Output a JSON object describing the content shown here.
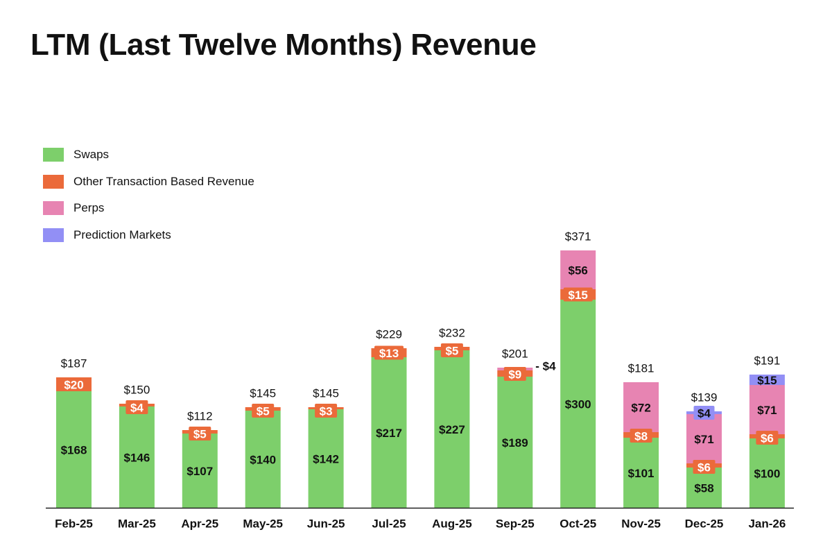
{
  "page": {
    "title": "LTM (Last Twelve Months) Revenue"
  },
  "chart_data": {
    "type": "stacked-bar",
    "title": "LTM (Last Twelve Months) Revenue",
    "xlabel": "",
    "ylabel": "",
    "ylim": [
      0,
      380
    ],
    "grid": false,
    "legend_position": "top-left",
    "categories": [
      "Feb-25",
      "Mar-25",
      "Apr-25",
      "May-25",
      "Jun-25",
      "Jul-25",
      "Aug-25",
      "Sep-25",
      "Oct-25",
      "Nov-25",
      "Dec-25",
      "Jan-26"
    ],
    "series": [
      {
        "name": "Swaps",
        "color": "#7dcf6b",
        "values": [
          168,
          146,
          107,
          140,
          142,
          217,
          227,
          189,
          300,
          101,
          58,
          100
        ],
        "labels": [
          "$168",
          "$146",
          "$107",
          "$140",
          "$142",
          "$217",
          "$227",
          "$189",
          "$300",
          "$101",
          "$58",
          "$100"
        ]
      },
      {
        "name": "Other Transaction Based Revenue",
        "color": "#eb6a3a",
        "values": [
          20,
          4,
          5,
          5,
          3,
          13,
          5,
          9,
          15,
          8,
          6,
          6
        ],
        "labels": [
          "$20",
          "$4",
          "$5",
          "$5",
          "$3",
          "$13",
          "$5",
          "$9",
          "$15",
          "$8",
          "$6",
          "$6"
        ]
      },
      {
        "name": "Perps",
        "color": "#e784b2",
        "values": [
          0,
          0,
          0,
          0,
          0,
          0,
          0,
          4,
          56,
          72,
          71,
          71
        ],
        "labels": [
          "",
          "",
          "",
          "",
          "",
          "",
          "",
          "- $4",
          "$56",
          "$72",
          "$71",
          "$71"
        ]
      },
      {
        "name": "Prediction Markets",
        "color": "#928ff5",
        "values": [
          0,
          0,
          0,
          0,
          0,
          0,
          0,
          0,
          0,
          0,
          4,
          15
        ],
        "labels": [
          "",
          "",
          "",
          "",
          "",
          "",
          "",
          "",
          "",
          "",
          "$4",
          "$15"
        ]
      }
    ],
    "totals": [
      "$187",
      "$150",
      "$112",
      "$145",
      "$145",
      "$229",
      "$232",
      "$201",
      "$371",
      "$181",
      "$139",
      "$191"
    ]
  }
}
